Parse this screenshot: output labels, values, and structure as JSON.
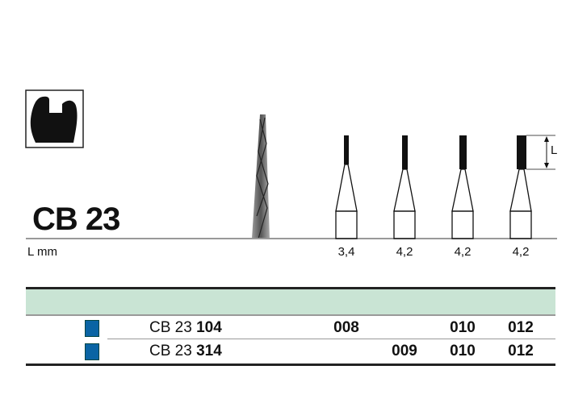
{
  "product": {
    "title": "CB 23",
    "length_label": "L mm",
    "dimension_label": "L",
    "lengths": [
      "3,4",
      "4,2",
      "4,2",
      "4,2"
    ]
  },
  "table": {
    "header_color": "#c9e4d4",
    "marker_color": "#0a64a4",
    "rows": [
      {
        "prefix": "CB 23",
        "code": "104",
        "sizes": [
          "008",
          "",
          "010",
          "012"
        ]
      },
      {
        "prefix": "CB 23",
        "code": "314",
        "sizes": [
          "",
          "009",
          "010",
          "012"
        ]
      }
    ]
  }
}
